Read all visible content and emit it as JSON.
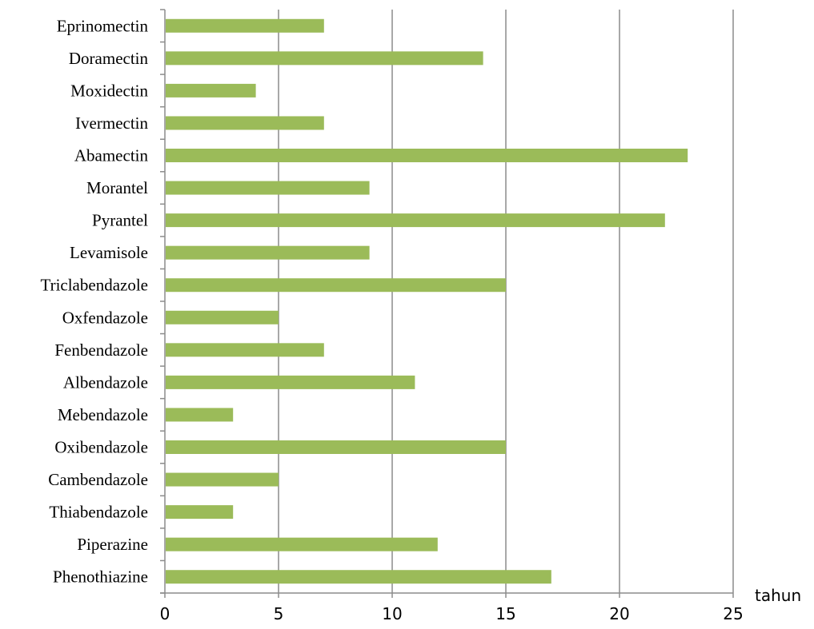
{
  "chart_data": {
    "type": "bar",
    "orientation": "horizontal",
    "title": "",
    "xlabel": "tahun",
    "ylabel": "",
    "xlim": [
      0,
      25
    ],
    "xticks": [
      0,
      5,
      10,
      15,
      20,
      25
    ],
    "grid": "vertical",
    "legend": "none",
    "bar_color": "#9bbb59",
    "categories": [
      "Eprinomectin",
      "Doramectin",
      "Moxidectin",
      "Ivermectin",
      "Abamectin",
      "Morantel",
      "Pyrantel",
      "Levamisole",
      "Triclabendazole",
      "Oxfendazole",
      "Fenbendazole",
      "Albendazole",
      "Mebendazole",
      "Oxibendazole",
      "Cambendazole",
      "Thiabendazole",
      "Piperazine",
      "Phenothiazine"
    ],
    "values": [
      7,
      14,
      4,
      7,
      23,
      9,
      22,
      9,
      15,
      5,
      7,
      11,
      3,
      15,
      5,
      3,
      12,
      17
    ]
  }
}
